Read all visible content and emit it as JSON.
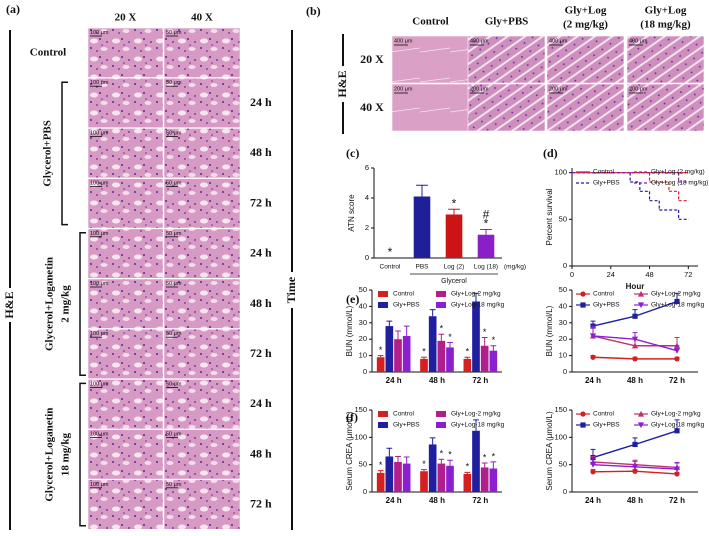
{
  "panel_a": {
    "label": "(a)",
    "columns": [
      "20 X",
      "40 X"
    ],
    "stain": "H&E",
    "axis_label": "Time",
    "groups": [
      {
        "lines": [
          "Control"
        ]
      },
      {
        "lines": [
          "Glycerol+PBS"
        ]
      },
      {
        "lines": [
          "Glycerol+Loganetin",
          "2 mg/kg"
        ]
      },
      {
        "lines": [
          "Glycerol+Loganetin",
          "18 mg/kg"
        ]
      }
    ],
    "times": [
      "24 h",
      "48 h",
      "72 h"
    ],
    "scales": [
      "100 μm",
      "50 μm"
    ]
  },
  "panel_b": {
    "label": "(b)",
    "stain": "H&E",
    "columns": [
      [
        "Control"
      ],
      [
        "Gly+PBS"
      ],
      [
        "Gly+Log",
        "(2 mg/kg)"
      ],
      [
        "Gly+Log",
        "(18 mg/kg)"
      ]
    ],
    "rows": [
      "20 X",
      "40 X"
    ],
    "scales": [
      "400 μm",
      "200 μm"
    ]
  },
  "chart_data": [
    {
      "type": "bar",
      "panel": "(c)",
      "y_label": "ATN score",
      "categories": [
        "Control",
        "PBS",
        "Log (2)",
        "Log (18)"
      ],
      "group_label": "Glycerol",
      "unit_label": "(mg/kg)",
      "series": [
        {
          "colors": [
            "#1f1f99",
            "#1f1f99",
            "#cc1414",
            "#8a1fc9"
          ],
          "values": [
            0,
            4.1,
            2.9,
            1.55
          ],
          "errors": [
            null,
            0.75,
            0.35,
            0.35
          ],
          "annotations": [
            [
              "*"
            ],
            [],
            [
              "*"
            ],
            [
              "#",
              "*"
            ]
          ]
        }
      ],
      "ylim": [
        0,
        6
      ],
      "yticks": [
        0,
        2,
        4,
        6
      ]
    },
    {
      "type": "step",
      "panel": "(d)",
      "x_label": "Hour",
      "y_label": "Percent survival",
      "legend": "top",
      "series": [
        {
          "name": "Control",
          "color": "#d42020",
          "dashed": false,
          "x": [
            0,
            72
          ],
          "values": [
            100,
            100
          ]
        },
        {
          "name": "Gly+PBS",
          "color": "#1f1fa0",
          "dashed": true,
          "x": [
            0,
            36,
            42,
            48,
            54,
            66,
            72
          ],
          "values": [
            100,
            90,
            80,
            70,
            60,
            50,
            50
          ]
        },
        {
          "name": "Gly+Log (2 mg/kg)",
          "color": "#d42020",
          "dashed": true,
          "x": [
            0,
            48,
            60,
            66,
            72
          ],
          "values": [
            100,
            90,
            80,
            70,
            70
          ]
        },
        {
          "name": "Gly+Log (18 mg/kg)",
          "color": "#8a1fc9",
          "dashed": true,
          "x": [
            0,
            66,
            72
          ],
          "values": [
            100,
            90,
            90
          ]
        }
      ],
      "xlim": [
        0,
        78
      ],
      "xticks": [
        0,
        24,
        48,
        72
      ],
      "ylim": [
        0,
        105
      ],
      "yticks": [
        0,
        50,
        100
      ]
    },
    {
      "type": "bar",
      "panel": "(e)",
      "y_label": "BUN (mmol/L)",
      "categories": [
        "24 h",
        "48 h",
        "72 h"
      ],
      "legend": "top",
      "series": [
        {
          "name": "Control",
          "color": "#d42020",
          "values": [
            9,
            8,
            8
          ],
          "errors": [
            1,
            1,
            1
          ],
          "annotations": [
            [
              "*"
            ],
            [
              "*"
            ],
            [
              "*"
            ]
          ]
        },
        {
          "name": "Gly+PBS",
          "color": "#1f1fa0",
          "values": [
            28,
            34,
            43
          ],
          "errors": [
            3,
            4,
            5
          ],
          "annotations": [
            [],
            [],
            []
          ]
        },
        {
          "name": "Gly+Log-2 mg/kg",
          "color": "#b01f8c",
          "values": [
            20,
            19,
            16
          ],
          "errors": [
            5,
            4,
            5
          ],
          "annotations": [
            [],
            [
              "*"
            ],
            [
              "*"
            ]
          ]
        },
        {
          "name": "Gly+Log-18 mg/kg",
          "color": "#8c1fd0",
          "values": [
            22,
            15,
            13
          ],
          "errors": [
            6,
            3,
            3
          ],
          "annotations": [
            [],
            [
              "*"
            ],
            [
              "*"
            ]
          ]
        }
      ],
      "ylim": [
        0,
        50
      ],
      "yticks": [
        0,
        10,
        20,
        30,
        40,
        50
      ]
    },
    {
      "type": "line",
      "y_label": "BUN (mmol/L)",
      "categories": [
        "24 h",
        "48 h",
        "72 h"
      ],
      "legend": "top",
      "series": [
        {
          "name": "Control",
          "color": "#d42020",
          "marker": "circle",
          "values": [
            9,
            8,
            8
          ],
          "errors": [
            1,
            1,
            1
          ]
        },
        {
          "name": "Gly+PBS",
          "color": "#1f1fa0",
          "marker": "square",
          "values": [
            28,
            34,
            43
          ],
          "errors": [
            3,
            4,
            5
          ]
        },
        {
          "name": "Gly+Log-2 mg/kg",
          "color": "#c0306f",
          "marker": "triangle",
          "values": [
            22,
            16,
            16
          ],
          "errors": [
            5,
            5,
            5
          ]
        },
        {
          "name": "Gly+Log-18 mg/kg",
          "color": "#8c1fd0",
          "marker": "triangle-down",
          "values": [
            22,
            20,
            13
          ],
          "errors": [
            6,
            4,
            3
          ]
        }
      ],
      "ylim": [
        0,
        50
      ],
      "yticks": [
        0,
        10,
        20,
        30,
        40,
        50
      ]
    },
    {
      "type": "bar",
      "panel": "(f)",
      "y_label": "Serum CREA (μmol/L)",
      "categories": [
        "24 h",
        "48 h",
        "72 h"
      ],
      "legend": "top",
      "series": [
        {
          "name": "Control",
          "color": "#d42020",
          "values": [
            35,
            38,
            33
          ],
          "errors": [
            4,
            3,
            3
          ],
          "annotations": [
            [
              "*"
            ],
            [
              "*"
            ],
            [
              "*"
            ]
          ]
        },
        {
          "name": "Gly+PBS",
          "color": "#1f1fa0",
          "values": [
            65,
            87,
            112
          ],
          "errors": [
            15,
            12,
            20
          ],
          "annotations": [
            [],
            [],
            []
          ]
        },
        {
          "name": "Gly+Log-2 mg/kg",
          "color": "#b01f8c",
          "values": [
            55,
            52,
            45
          ],
          "errors": [
            10,
            8,
            8
          ],
          "annotations": [
            [],
            [
              "*"
            ],
            [
              "*"
            ]
          ]
        },
        {
          "name": "Gly+Log-18 mg/kg",
          "color": "#8c1fd0",
          "values": [
            52,
            48,
            43
          ],
          "errors": [
            12,
            10,
            12
          ],
          "annotations": [
            [],
            [
              "*"
            ],
            [
              "*"
            ]
          ]
        }
      ],
      "ylim": [
        0,
        150
      ],
      "yticks": [
        0,
        50,
        100,
        150
      ]
    },
    {
      "type": "line",
      "y_label": "Serum CREA (μmol/L)",
      "categories": [
        "24 h",
        "48 h",
        "72 h"
      ],
      "legend": "top",
      "series": [
        {
          "name": "Control",
          "color": "#d42020",
          "marker": "circle",
          "values": [
            37,
            38,
            33
          ],
          "errors": [
            4,
            3,
            3
          ]
        },
        {
          "name": "Gly+PBS",
          "color": "#1f1fa0",
          "marker": "square",
          "values": [
            63,
            87,
            112
          ],
          "errors": [
            15,
            12,
            20
          ]
        },
        {
          "name": "Gly+Log-2 mg/kg",
          "color": "#c0306f",
          "marker": "triangle",
          "values": [
            55,
            50,
            45
          ],
          "errors": [
            10,
            8,
            8
          ]
        },
        {
          "name": "Gly+Log-18 mg/kg",
          "color": "#8c1fd0",
          "marker": "triangle-down",
          "values": [
            50,
            46,
            42
          ],
          "errors": [
            12,
            10,
            12
          ]
        }
      ],
      "ylim": [
        0,
        150
      ],
      "yticks": [
        0,
        50,
        100,
        150
      ]
    }
  ]
}
